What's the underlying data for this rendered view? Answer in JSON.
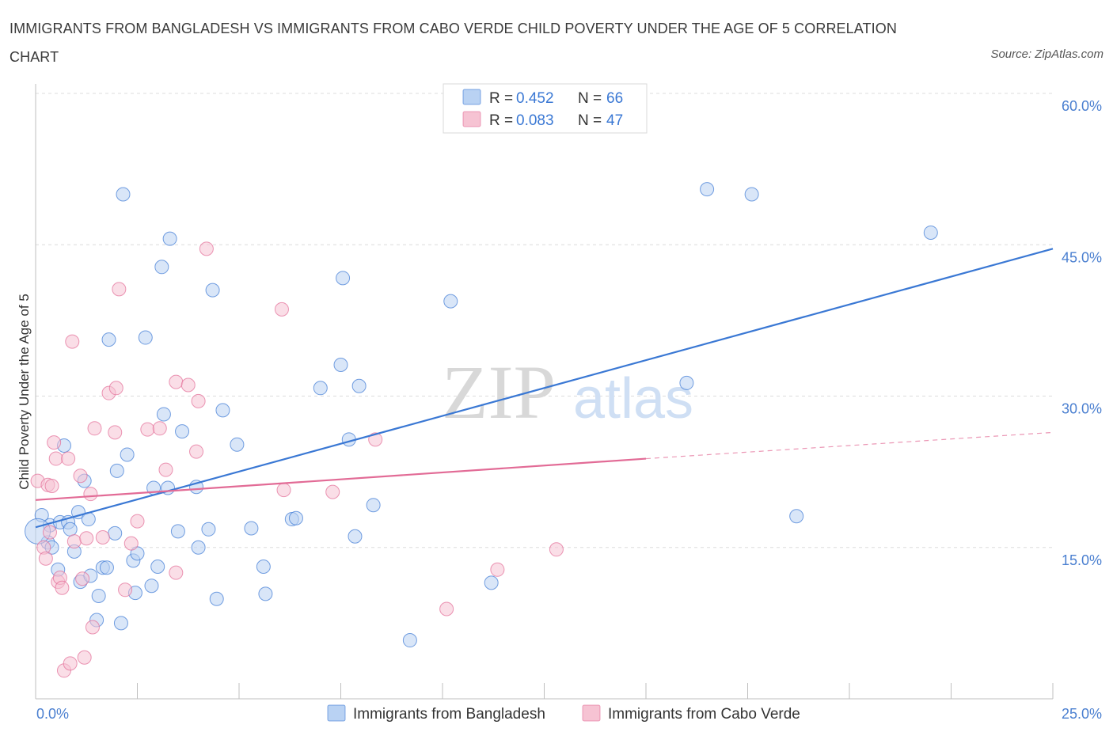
{
  "title": "IMMIGRANTS FROM BANGLADESH VS IMMIGRANTS FROM CABO VERDE CHILD POVERTY UNDER THE AGE OF 5 CORRELATION CHART",
  "source": "Source: ZipAtlas.com",
  "watermark": {
    "zip": "ZIP",
    "atlas": "atlas"
  },
  "colors": {
    "blue": "#3a78d4",
    "blue_fill": "#b9d2f3",
    "pink": "#e26b96",
    "pink_fill": "#f6c3d3",
    "axis_text": "#4a7fd0",
    "grid": "#dcdcdc"
  },
  "legend_top": [
    {
      "r_label": "R = ",
      "r_value": "0.452",
      "n_label": "N = ",
      "n_value": "66"
    },
    {
      "r_label": "R = ",
      "r_value": "0.083",
      "n_label": "N = ",
      "n_value": "47"
    }
  ],
  "chart_data": {
    "type": "scatter",
    "ylabel": "Child Poverty Under the Age of 5",
    "xlim": [
      0,
      25
    ],
    "ylim": [
      0,
      60
    ],
    "x_tick_labels": [
      "0.0%",
      "25.0%"
    ],
    "y_tick_labels": [
      "15.0%",
      "30.0%",
      "45.0%",
      "60.0%"
    ],
    "y_ticks": [
      15,
      30,
      45,
      60
    ],
    "series": [
      {
        "name": "Immigrants from Bangladesh",
        "color": "#3a78d4",
        "trend": {
          "x": [
            0,
            25
          ],
          "y": [
            17.0,
            44.6
          ]
        },
        "points": [
          [
            0.15,
            18.2
          ],
          [
            0.3,
            15.5
          ],
          [
            0.35,
            17.2
          ],
          [
            0.4,
            15.0
          ],
          [
            0.55,
            12.8
          ],
          [
            0.6,
            17.5
          ],
          [
            0.7,
            25.1
          ],
          [
            0.8,
            17.5
          ],
          [
            0.85,
            16.8
          ],
          [
            0.95,
            14.6
          ],
          [
            1.05,
            18.5
          ],
          [
            1.1,
            11.6
          ],
          [
            1.2,
            21.6
          ],
          [
            1.3,
            17.8
          ],
          [
            1.35,
            12.2
          ],
          [
            1.5,
            7.8
          ],
          [
            1.55,
            10.2
          ],
          [
            1.65,
            13.0
          ],
          [
            1.75,
            13.0
          ],
          [
            1.8,
            35.6
          ],
          [
            1.95,
            16.4
          ],
          [
            2.0,
            22.6
          ],
          [
            2.1,
            7.5
          ],
          [
            2.15,
            50.0
          ],
          [
            2.25,
            24.2
          ],
          [
            2.4,
            13.7
          ],
          [
            2.45,
            10.5
          ],
          [
            2.5,
            14.4
          ],
          [
            2.7,
            35.8
          ],
          [
            2.85,
            11.2
          ],
          [
            2.9,
            20.9
          ],
          [
            3.0,
            13.1
          ],
          [
            3.1,
            42.8
          ],
          [
            3.15,
            28.2
          ],
          [
            3.25,
            20.9
          ],
          [
            3.3,
            45.6
          ],
          [
            3.5,
            16.6
          ],
          [
            3.6,
            26.5
          ],
          [
            3.95,
            21.0
          ],
          [
            4.0,
            15.0
          ],
          [
            4.25,
            16.8
          ],
          [
            4.35,
            40.5
          ],
          [
            4.45,
            9.9
          ],
          [
            4.6,
            28.6
          ],
          [
            4.95,
            25.2
          ],
          [
            5.3,
            16.9
          ],
          [
            5.6,
            13.1
          ],
          [
            5.65,
            10.4
          ],
          [
            6.3,
            17.8
          ],
          [
            6.4,
            17.9
          ],
          [
            7.0,
            30.8
          ],
          [
            7.5,
            33.1
          ],
          [
            7.55,
            41.7
          ],
          [
            7.7,
            25.7
          ],
          [
            7.85,
            16.1
          ],
          [
            7.95,
            31.0
          ],
          [
            8.3,
            19.2
          ],
          [
            9.2,
            5.8
          ],
          [
            10.2,
            39.4
          ],
          [
            11.2,
            11.5
          ],
          [
            16.0,
            31.3
          ],
          [
            16.5,
            50.5
          ],
          [
            17.6,
            50.0
          ],
          [
            18.7,
            18.1
          ],
          [
            22.0,
            46.2
          ],
          [
            0.05,
            16.6
          ]
        ]
      },
      {
        "name": "Immigrants from Cabo Verde",
        "color": "#e26b96",
        "trend": {
          "x": [
            0,
            15
          ],
          "y": [
            19.7,
            23.8
          ]
        },
        "trend_dashed": {
          "x": [
            15,
            25
          ],
          "y": [
            23.8,
            26.4
          ]
        },
        "points": [
          [
            0.05,
            21.6
          ],
          [
            0.2,
            15.0
          ],
          [
            0.25,
            13.9
          ],
          [
            0.3,
            21.2
          ],
          [
            0.35,
            16.5
          ],
          [
            0.4,
            21.1
          ],
          [
            0.45,
            25.4
          ],
          [
            0.5,
            23.8
          ],
          [
            0.55,
            11.6
          ],
          [
            0.6,
            12.0
          ],
          [
            0.65,
            11.0
          ],
          [
            0.7,
            2.8
          ],
          [
            0.8,
            23.8
          ],
          [
            0.85,
            3.5
          ],
          [
            0.9,
            35.4
          ],
          [
            0.95,
            15.6
          ],
          [
            1.1,
            22.1
          ],
          [
            1.15,
            11.9
          ],
          [
            1.2,
            4.1
          ],
          [
            1.25,
            15.9
          ],
          [
            1.35,
            20.3
          ],
          [
            1.4,
            7.1
          ],
          [
            1.45,
            26.8
          ],
          [
            1.65,
            16.0
          ],
          [
            1.8,
            30.3
          ],
          [
            1.95,
            26.4
          ],
          [
            1.98,
            30.8
          ],
          [
            2.05,
            40.6
          ],
          [
            2.2,
            10.8
          ],
          [
            2.35,
            15.4
          ],
          [
            2.5,
            17.6
          ],
          [
            2.75,
            26.7
          ],
          [
            3.05,
            26.8
          ],
          [
            3.2,
            22.7
          ],
          [
            3.45,
            31.4
          ],
          [
            3.45,
            12.5
          ],
          [
            3.75,
            31.1
          ],
          [
            3.95,
            24.5
          ],
          [
            4.0,
            29.5
          ],
          [
            4.2,
            44.6
          ],
          [
            6.05,
            38.6
          ],
          [
            6.1,
            20.7
          ],
          [
            7.3,
            20.5
          ],
          [
            8.35,
            25.7
          ],
          [
            10.1,
            8.9
          ],
          [
            11.35,
            12.8
          ],
          [
            12.8,
            14.8
          ]
        ]
      }
    ]
  }
}
